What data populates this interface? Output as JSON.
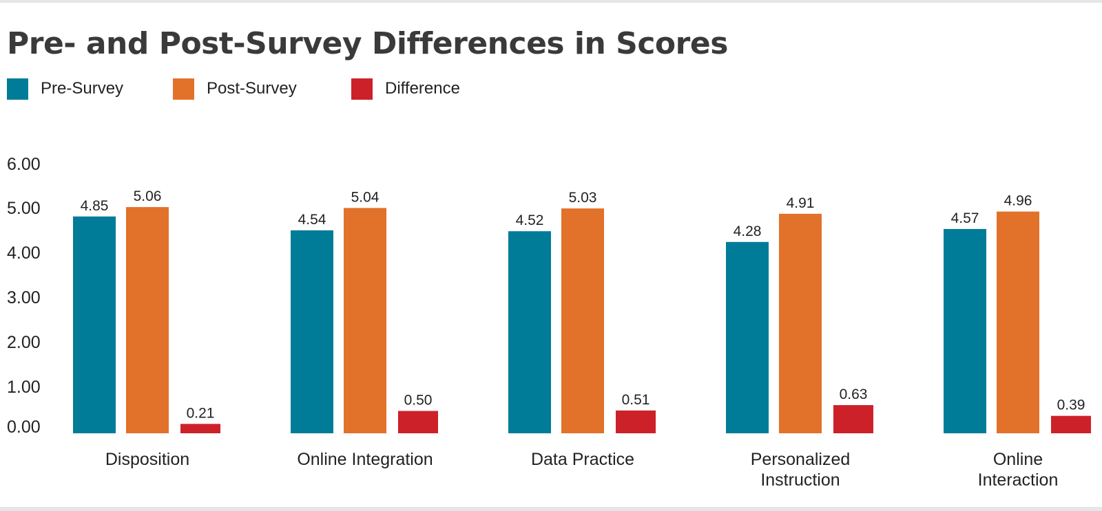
{
  "title": "Pre- and Post-Survey Differences in Scores",
  "legend": [
    {
      "label": "Pre-Survey",
      "color": "#007c99"
    },
    {
      "label": "Post-Survey",
      "color": "#e2712a"
    },
    {
      "label": "Difference",
      "color": "#cd2129"
    }
  ],
  "chart_data": {
    "type": "bar",
    "title": "Pre- and Post-Survey Differences in Scores",
    "categories": [
      [
        "Disposition"
      ],
      [
        "Online Integration"
      ],
      [
        "Data Practice"
      ],
      [
        "Personalized",
        "Instruction"
      ],
      [
        "Online",
        "Interaction"
      ]
    ],
    "series": [
      {
        "name": "Pre-Survey",
        "color": "#007c99",
        "values": [
          4.85,
          4.54,
          4.52,
          4.28,
          4.57
        ],
        "labels": [
          "4.85",
          "4.54",
          "4.52",
          "4.28",
          "4.57"
        ]
      },
      {
        "name": "Post-Survey",
        "color": "#e2712a",
        "values": [
          5.06,
          5.04,
          5.03,
          4.91,
          4.96
        ],
        "labels": [
          "5.06",
          "5.04",
          "5.03",
          "4.91",
          "4.96"
        ]
      },
      {
        "name": "Difference",
        "color": "#cd2129",
        "values": [
          0.21,
          0.5,
          0.51,
          0.63,
          0.39
        ],
        "labels": [
          "0.21",
          "0.50",
          "0.51",
          "0.63",
          "0.39"
        ]
      }
    ],
    "yticks": [
      "6.00",
      "5.00",
      "4.00",
      "3.00",
      "2.00",
      "1.00",
      "0.00"
    ],
    "ylim": [
      0,
      6
    ],
    "xlabel": "",
    "ylabel": "",
    "grid": false,
    "legend_position": "top-left"
  }
}
